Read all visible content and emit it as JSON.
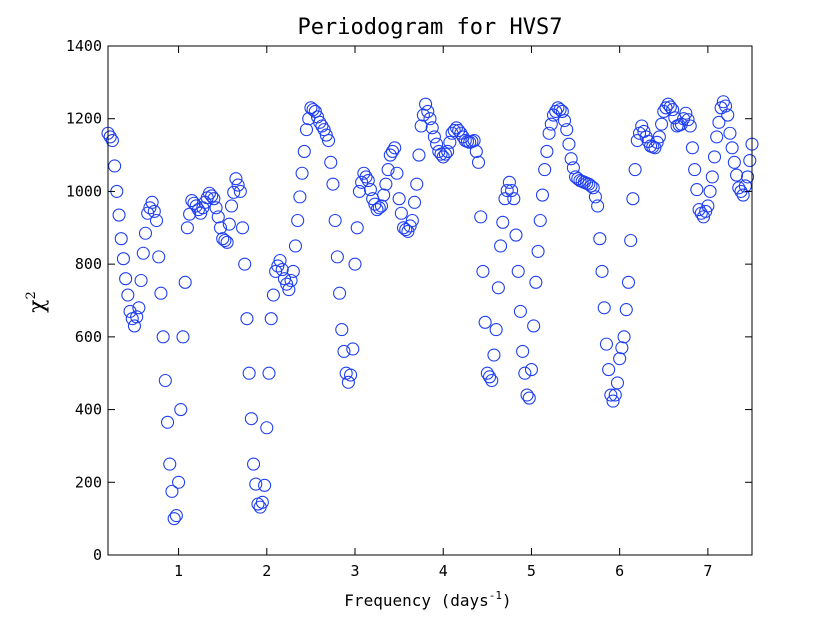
{
  "chart_data": {
    "type": "scatter",
    "title": "Periodogram for HVS7",
    "xlabel": "Frequency (days",
    "xlabel_sup": "-1",
    "xlabel_close": ")",
    "ylabel": "χ",
    "ylabel_sup": "2",
    "xlim": [
      0.2,
      7.5
    ],
    "ylim": [
      0,
      1400
    ],
    "xticks": [
      1,
      2,
      3,
      4,
      5,
      6,
      7
    ],
    "yticks": [
      0,
      200,
      400,
      600,
      800,
      1000,
      1200,
      1400
    ],
    "marker": "open-circle",
    "color": "#1f3ff0",
    "step": 0.025,
    "anchors": [
      [
        0.2,
        1160
      ],
      [
        0.25,
        1140
      ],
      [
        0.3,
        1000
      ],
      [
        0.35,
        870
      ],
      [
        0.4,
        760
      ],
      [
        0.45,
        670
      ],
      [
        0.5,
        630
      ],
      [
        0.55,
        680
      ],
      [
        0.6,
        830
      ],
      [
        0.65,
        940
      ],
      [
        0.7,
        970
      ],
      [
        0.75,
        920
      ],
      [
        0.8,
        720
      ],
      [
        0.85,
        480
      ],
      [
        0.9,
        250
      ],
      [
        0.95,
        100
      ],
      [
        0.97,
        90
      ],
      [
        1.0,
        200
      ],
      [
        1.05,
        600
      ],
      [
        1.1,
        900
      ],
      [
        1.15,
        975
      ],
      [
        1.2,
        960
      ],
      [
        1.25,
        940
      ],
      [
        1.3,
        970
      ],
      [
        1.35,
        995
      ],
      [
        1.4,
        980
      ],
      [
        1.45,
        930
      ],
      [
        1.5,
        870
      ],
      [
        1.55,
        860
      ],
      [
        1.6,
        960
      ],
      [
        1.65,
        1035
      ],
      [
        1.7,
        1000
      ],
      [
        1.75,
        800
      ],
      [
        1.8,
        500
      ],
      [
        1.85,
        250
      ],
      [
        1.9,
        140
      ],
      [
        1.93,
        130
      ],
      [
        1.97,
        160
      ],
      [
        2.0,
        350
      ],
      [
        2.05,
        650
      ],
      [
        2.1,
        780
      ],
      [
        2.15,
        810
      ],
      [
        2.2,
        760
      ],
      [
        2.25,
        730
      ],
      [
        2.3,
        780
      ],
      [
        2.35,
        920
      ],
      [
        2.4,
        1050
      ],
      [
        2.45,
        1170
      ],
      [
        2.5,
        1230
      ],
      [
        2.55,
        1220
      ],
      [
        2.6,
        1190
      ],
      [
        2.65,
        1170
      ],
      [
        2.7,
        1140
      ],
      [
        2.75,
        1020
      ],
      [
        2.8,
        820
      ],
      [
        2.85,
        620
      ],
      [
        2.9,
        500
      ],
      [
        2.93,
        470
      ],
      [
        2.97,
        520
      ],
      [
        3.0,
        800
      ],
      [
        3.05,
        1000
      ],
      [
        3.1,
        1050
      ],
      [
        3.15,
        1030
      ],
      [
        3.2,
        980
      ],
      [
        3.25,
        950
      ],
      [
        3.3,
        960
      ],
      [
        3.35,
        1020
      ],
      [
        3.4,
        1100
      ],
      [
        3.45,
        1120
      ],
      [
        3.5,
        980
      ],
      [
        3.55,
        900
      ],
      [
        3.6,
        890
      ],
      [
        3.65,
        920
      ],
      [
        3.7,
        1020
      ],
      [
        3.75,
        1180
      ],
      [
        3.8,
        1240
      ],
      [
        3.85,
        1200
      ],
      [
        3.9,
        1150
      ],
      [
        3.95,
        1110
      ],
      [
        4.0,
        1095
      ],
      [
        4.05,
        1110
      ],
      [
        4.1,
        1160
      ],
      [
        4.15,
        1175
      ],
      [
        4.2,
        1160
      ],
      [
        4.25,
        1140
      ],
      [
        4.3,
        1135
      ],
      [
        4.35,
        1140
      ],
      [
        4.4,
        1080
      ],
      [
        4.45,
        780
      ],
      [
        4.5,
        500
      ],
      [
        4.55,
        480
      ],
      [
        4.6,
        620
      ],
      [
        4.65,
        850
      ],
      [
        4.7,
        980
      ],
      [
        4.75,
        1025
      ],
      [
        4.8,
        980
      ],
      [
        4.85,
        780
      ],
      [
        4.9,
        560
      ],
      [
        4.95,
        440
      ],
      [
        4.98,
        430
      ],
      [
        5.0,
        510
      ],
      [
        5.05,
        750
      ],
      [
        5.1,
        920
      ],
      [
        5.15,
        1060
      ],
      [
        5.2,
        1160
      ],
      [
        5.25,
        1210
      ],
      [
        5.3,
        1230
      ],
      [
        5.35,
        1220
      ],
      [
        5.4,
        1170
      ],
      [
        5.45,
        1090
      ],
      [
        5.5,
        1040
      ],
      [
        5.55,
        1030
      ],
      [
        5.6,
        1025
      ],
      [
        5.65,
        1020
      ],
      [
        5.7,
        1010
      ],
      [
        5.75,
        960
      ],
      [
        5.8,
        780
      ],
      [
        5.85,
        580
      ],
      [
        5.9,
        440
      ],
      [
        5.93,
        420
      ],
      [
        5.97,
        460
      ],
      [
        6.0,
        540
      ],
      [
        6.05,
        600
      ],
      [
        6.1,
        750
      ],
      [
        6.15,
        980
      ],
      [
        6.2,
        1140
      ],
      [
        6.25,
        1180
      ],
      [
        6.3,
        1150
      ],
      [
        6.35,
        1125
      ],
      [
        6.4,
        1120
      ],
      [
        6.45,
        1150
      ],
      [
        6.5,
        1220
      ],
      [
        6.55,
        1240
      ],
      [
        6.6,
        1225
      ],
      [
        6.65,
        1180
      ],
      [
        6.7,
        1185
      ],
      [
        6.75,
        1215
      ],
      [
        6.8,
        1180
      ],
      [
        6.85,
        1060
      ],
      [
        6.9,
        950
      ],
      [
        6.95,
        930
      ],
      [
        7.0,
        960
      ],
      [
        7.05,
        1040
      ],
      [
        7.1,
        1150
      ],
      [
        7.15,
        1230
      ],
      [
        7.18,
        1250
      ],
      [
        7.22,
        1220
      ],
      [
        7.25,
        1160
      ],
      [
        7.3,
        1080
      ],
      [
        7.35,
        1010
      ],
      [
        7.4,
        990
      ],
      [
        7.45,
        1040
      ],
      [
        7.5,
        1130
      ]
    ]
  }
}
